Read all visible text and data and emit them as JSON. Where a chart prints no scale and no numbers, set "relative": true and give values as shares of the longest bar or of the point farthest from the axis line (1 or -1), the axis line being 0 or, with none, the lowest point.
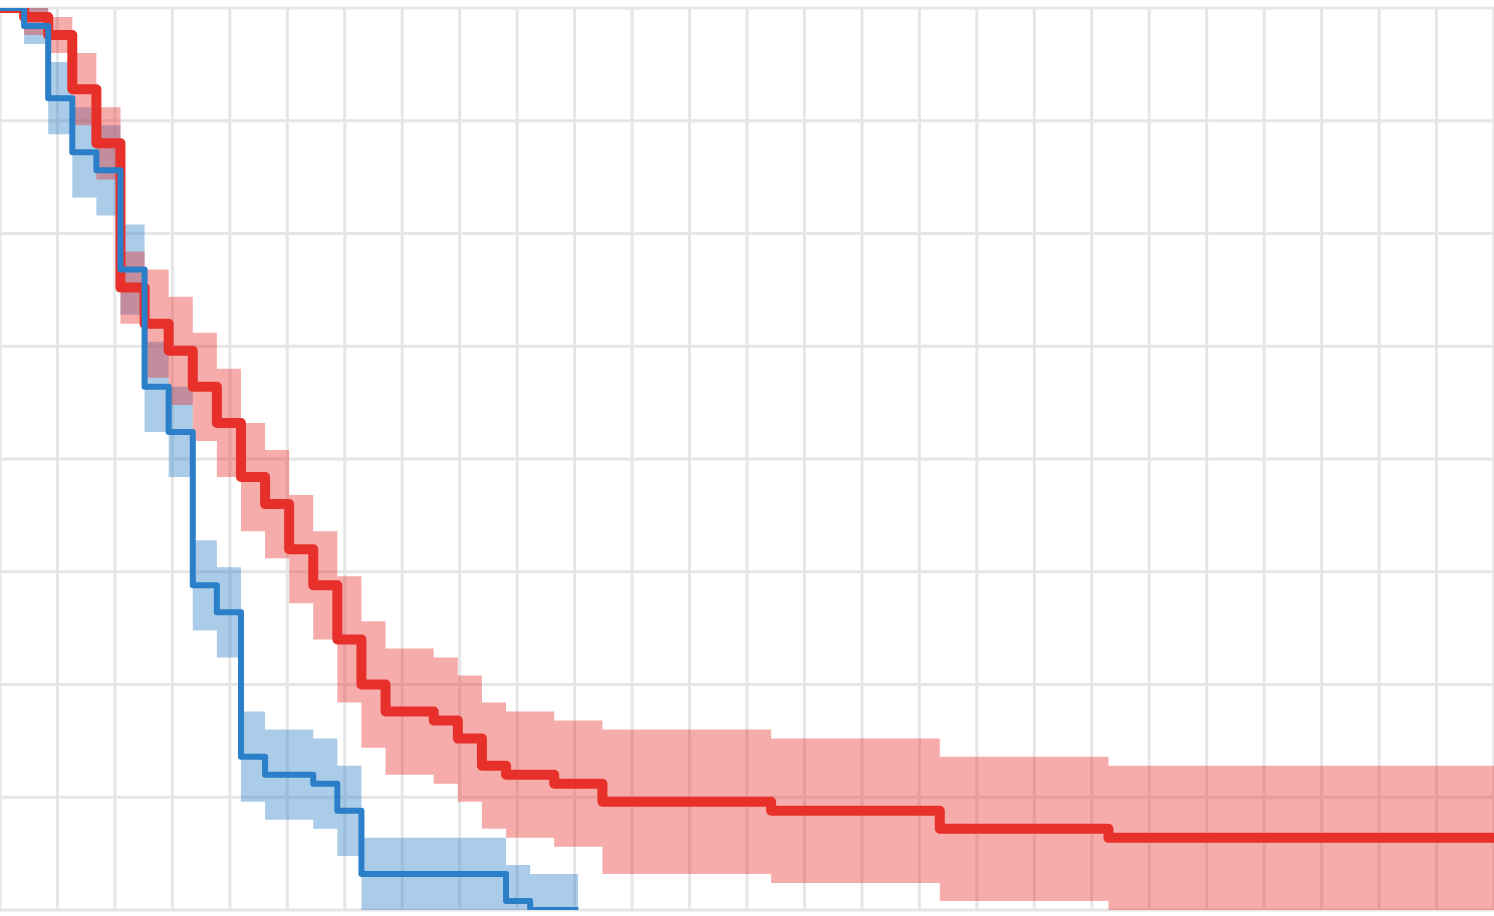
{
  "chart_data": {
    "type": "step",
    "relative": true,
    "grid": true,
    "legend": false,
    "categories": [
      null,
      null,
      null,
      null,
      null,
      null,
      null,
      null,
      null,
      null,
      null,
      null,
      null,
      null,
      null,
      null,
      null,
      null,
      null,
      null,
      null,
      null,
      null,
      null,
      null,
      null,
      null,
      null,
      null,
      null,
      null,
      null,
      null,
      null,
      null,
      null,
      null,
      null,
      null,
      null,
      null,
      null,
      null,
      null,
      null,
      null,
      null,
      null,
      null,
      null,
      null,
      null,
      null,
      null,
      null,
      null,
      null,
      null,
      null,
      null,
      null,
      null,
      null
    ],
    "series": [
      {
        "color": "#e8302a",
        "values": [
          1.0,
          0.99,
          0.97,
          0.91,
          0.85,
          0.69,
          0.65,
          0.62,
          0.58,
          0.54,
          0.48,
          0.45,
          0.4,
          0.36,
          0.3,
          0.25,
          0.22,
          0.22,
          0.21,
          0.19,
          0.16,
          0.15,
          0.15,
          0.14,
          0.14,
          0.12,
          0.12,
          0.12,
          0.12,
          0.12,
          0.12,
          0.12,
          0.11,
          0.11,
          0.11,
          0.11,
          0.11,
          0.11,
          0.11,
          0.09,
          0.09,
          0.09,
          0.09,
          0.09,
          0.09,
          0.09,
          0.08,
          0.08,
          0.08,
          0.08,
          0.08,
          0.08,
          0.08,
          0.08,
          0.08,
          0.08,
          0.08,
          0.08,
          0.08,
          0.08,
          0.08,
          0.08,
          0.08
        ],
        "upper": [
          1.0,
          1.0,
          0.99,
          0.95,
          0.89,
          0.73,
          0.71,
          0.68,
          0.64,
          0.6,
          0.54,
          0.51,
          0.46,
          0.42,
          0.37,
          0.32,
          0.29,
          0.29,
          0.28,
          0.26,
          0.23,
          0.22,
          0.22,
          0.21,
          0.21,
          0.2,
          0.2,
          0.2,
          0.2,
          0.2,
          0.2,
          0.2,
          0.19,
          0.19,
          0.19,
          0.19,
          0.19,
          0.19,
          0.19,
          0.17,
          0.17,
          0.17,
          0.17,
          0.17,
          0.17,
          0.17,
          0.16,
          0.16,
          0.16,
          0.16,
          0.16,
          0.16,
          0.16,
          0.16,
          0.16,
          0.16,
          0.16,
          0.16,
          0.16,
          0.16,
          0.16,
          0.16,
          0.16
        ],
        "lower": [
          1.0,
          0.97,
          0.95,
          0.87,
          0.81,
          0.65,
          0.59,
          0.56,
          0.52,
          0.48,
          0.42,
          0.39,
          0.34,
          0.3,
          0.23,
          0.18,
          0.15,
          0.15,
          0.14,
          0.12,
          0.09,
          0.08,
          0.08,
          0.07,
          0.07,
          0.04,
          0.04,
          0.04,
          0.04,
          0.04,
          0.04,
          0.04,
          0.03,
          0.03,
          0.03,
          0.03,
          0.03,
          0.03,
          0.03,
          0.01,
          0.01,
          0.01,
          0.01,
          0.01,
          0.01,
          0.01,
          0.0,
          0.0,
          0.0,
          0.0,
          0.0,
          0.0,
          0.0,
          0.0,
          0.0,
          0.0,
          0.0,
          0.0,
          0.0,
          0.0,
          0.0,
          0.0,
          0.0
        ]
      },
      {
        "color": "#2a7fc8",
        "values": [
          1.0,
          0.98,
          0.9,
          0.84,
          0.82,
          0.71,
          0.58,
          0.53,
          0.36,
          0.33,
          0.17,
          0.15,
          0.15,
          0.14,
          0.11,
          0.04,
          0.04,
          0.04,
          0.04,
          0.04,
          0.04,
          0.01,
          0.0,
          0.0,
          0.0,
          null,
          null,
          null,
          null,
          null,
          null,
          null,
          null,
          null,
          null,
          null,
          null,
          null,
          null,
          null,
          null,
          null,
          null,
          null,
          null,
          null,
          null,
          null,
          null,
          null,
          null,
          null,
          null,
          null,
          null,
          null,
          null,
          null,
          null,
          null,
          null,
          null,
          null
        ],
        "upper": [
          1.0,
          1.0,
          0.94,
          0.89,
          0.87,
          0.76,
          0.63,
          0.58,
          0.41,
          0.38,
          0.22,
          0.2,
          0.2,
          0.19,
          0.16,
          0.08,
          0.08,
          0.08,
          0.08,
          0.08,
          0.08,
          0.05,
          0.04,
          0.04,
          0.04,
          null,
          null,
          null,
          null,
          null,
          null,
          null,
          null,
          null,
          null,
          null,
          null,
          null,
          null,
          null,
          null,
          null,
          null,
          null,
          null,
          null,
          null,
          null,
          null,
          null,
          null,
          null,
          null,
          null,
          null,
          null,
          null,
          null,
          null,
          null,
          null,
          null,
          null
        ],
        "lower": [
          1.0,
          0.96,
          0.86,
          0.79,
          0.77,
          0.66,
          0.53,
          0.48,
          0.31,
          0.28,
          0.12,
          0.1,
          0.1,
          0.09,
          0.06,
          0.0,
          0.0,
          0.0,
          0.0,
          0.0,
          0.0,
          0.0,
          0.0,
          0.0,
          0.0,
          null,
          null,
          null,
          null,
          null,
          null,
          null,
          null,
          null,
          null,
          null,
          null,
          null,
          null,
          null,
          null,
          null,
          null,
          null,
          null,
          null,
          null,
          null,
          null,
          null,
          null,
          null,
          null,
          null,
          null,
          null,
          null,
          null,
          null,
          null,
          null,
          null,
          null
        ]
      }
    ]
  }
}
